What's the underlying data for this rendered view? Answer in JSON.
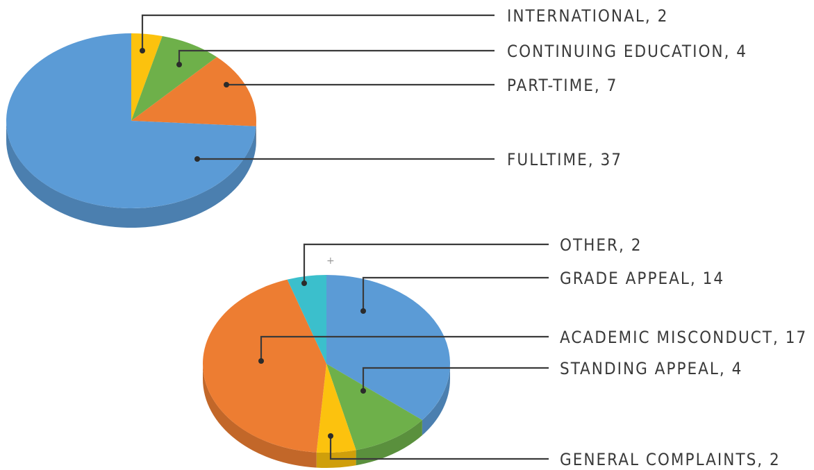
{
  "chart_data": [
    {
      "type": "pie",
      "slices": [
        {
          "label": "INTERNATIONAL",
          "value": 2,
          "color": "#fcc20e"
        },
        {
          "label": "CONTINUING EDUCATION",
          "value": 4,
          "color": "#6eb04a"
        },
        {
          "label": "PART-TIME",
          "value": 7,
          "color": "#ed7d32"
        },
        {
          "label": "FULLTIME",
          "value": 37,
          "color": "#5b9bd6"
        }
      ],
      "labels": [
        "INTERNATIONAL, 2",
        "CONTINUING EDUCATION, 4",
        "PART-TIME, 7",
        "FULLTIME, 37"
      ],
      "style": "3d"
    },
    {
      "type": "pie",
      "slices": [
        {
          "label": "GRADE APPEAL",
          "value": 14,
          "color": "#5b9bd6"
        },
        {
          "label": "STANDING APPEAL",
          "value": 4,
          "color": "#6eb04a"
        },
        {
          "label": "GENERAL COMPLAINTS",
          "value": 2,
          "color": "#fcc20e"
        },
        {
          "label": "ACADEMIC MISCONDUCT",
          "value": 17,
          "color": "#ed7d32"
        },
        {
          "label": "OTHER",
          "value": 2,
          "color": "#3bbfcc"
        }
      ],
      "labels": [
        "OTHER, 2",
        "GRADE APPEAL, 14",
        "ACADEMIC MISCONDUCT,  17",
        "STANDING APPEAL, 4",
        "GENERAL COMPLAINTS, 2"
      ],
      "style": "3d"
    }
  ]
}
